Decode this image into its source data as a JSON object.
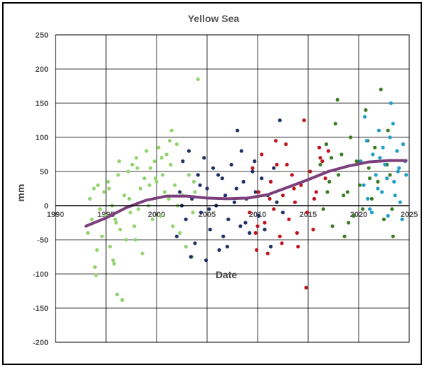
{
  "chart_data": {
    "type": "scatter",
    "title": "Yellow Sea",
    "xlabel": "Date",
    "ylabel": "mm",
    "xlim": [
      1990,
      2025
    ],
    "ylim": [
      -200,
      250
    ],
    "x_ticks": [
      1990,
      1995,
      2000,
      2005,
      2010,
      2015,
      2020,
      2025
    ],
    "y_ticks": [
      -200,
      -150,
      -100,
      -50,
      0,
      50,
      100,
      150,
      200,
      250
    ],
    "grid": true,
    "legend": "none",
    "trend": {
      "color": "#7B3F7B",
      "x": [
        1993.0,
        1995.0,
        1997.0,
        1999.0,
        2001.0,
        2003.0,
        2005.0,
        2007.0,
        2009.0,
        2011.0,
        2013.0,
        2015.0,
        2017.0,
        2019.0,
        2021.0,
        2023.0,
        2024.7
      ],
      "y": [
        -30,
        -18,
        -3,
        8,
        14,
        14,
        11,
        10,
        11,
        16,
        27,
        38,
        50,
        58,
        64,
        66,
        66
      ]
    },
    "series": [
      {
        "color": "#92D46E",
        "x": [
          1993.2,
          1993.4,
          1993.6,
          1993.8,
          1994.0,
          1994.2,
          1994.4,
          1994.6,
          1994.8,
          1995.0,
          1995.2,
          1995.4,
          1995.6,
          1995.8,
          1996.0,
          1996.2,
          1996.4,
          1996.6,
          1996.8,
          1997.0,
          1997.2,
          1997.4,
          1997.6,
          1997.8,
          1998.0,
          1998.2,
          1998.4,
          1998.6,
          1998.8,
          1999.0,
          1999.2,
          1999.4,
          1999.6,
          1999.8,
          2000.0,
          2000.2,
          2000.4,
          2000.6,
          2000.8,
          2001.0,
          2001.2,
          2001.4,
          2001.6,
          2001.8,
          2002.0,
          2002.3,
          2002.6,
          2002.9,
          2003.2,
          2003.5,
          2003.8,
          2004.1,
          1994.1,
          1995.3,
          1996.1,
          1997.3,
          1998.1,
          1999.3,
          2000.5,
          2001.5,
          1993.9,
          1995.9,
          1997.9,
          1999.9,
          2002.1,
          2003.6,
          1996.3,
          1995.7,
          2001.3,
          2003.7
        ],
        "y": [
          -40,
          10,
          -20,
          25,
          -102,
          30,
          -5,
          -45,
          20,
          -15,
          35,
          -60,
          0,
          -85,
          -25,
          45,
          -35,
          -138,
          15,
          -50,
          50,
          -10,
          60,
          -30,
          70,
          -5,
          25,
          -70,
          40,
          80,
          0,
          55,
          -20,
          65,
          35,
          85,
          -15,
          45,
          20,
          75,
          10,
          60,
          -30,
          30,
          90,
          -40,
          15,
          -60,
          45,
          -75,
          20,
          185,
          -65,
          25,
          -130,
          10,
          55,
          30,
          70,
          110,
          -90,
          -20,
          -50,
          40,
          0,
          -10,
          65,
          -80,
          95,
          35
        ]
      },
      {
        "color": "#1F3064",
        "x": [
          2002.0,
          2002.3,
          2002.6,
          2002.9,
          2003.2,
          2003.5,
          2003.8,
          2004.1,
          2004.4,
          2004.7,
          2005.0,
          2005.3,
          2005.6,
          2005.9,
          2006.2,
          2006.5,
          2006.8,
          2007.1,
          2007.4,
          2007.7,
          2008.0,
          2008.3,
          2008.6,
          2008.9,
          2009.2,
          2009.5,
          2009.8,
          2010.1,
          2002.5,
          2003.4,
          2004.3,
          2005.2,
          2006.1,
          2007.0,
          2007.9,
          2008.8,
          2009.7,
          2010.4,
          2010.7,
          2011.0,
          2011.3,
          2011.6,
          2011.9,
          2012.2,
          2012.5,
          2004.9,
          2006.6,
          2008.4
        ],
        "y": [
          -45,
          20,
          65,
          -20,
          80,
          10,
          -55,
          45,
          -10,
          70,
          25,
          -35,
          55,
          0,
          -65,
          40,
          15,
          -20,
          60,
          5,
          110,
          -30,
          35,
          10,
          -40,
          50,
          20,
          -15,
          0,
          -75,
          30,
          -5,
          45,
          -60,
          25,
          -25,
          65,
          40,
          -35,
          15,
          -60,
          55,
          5,
          125,
          -10,
          -80,
          -45,
          80
        ]
      },
      {
        "color": "#C0141C",
        "x": [
          2009.2,
          2009.5,
          2009.8,
          2010.1,
          2010.4,
          2010.7,
          2011.0,
          2011.3,
          2011.6,
          2011.9,
          2012.2,
          2012.5,
          2012.8,
          2013.1,
          2013.4,
          2013.7,
          2014.0,
          2014.3,
          2014.6,
          2014.9,
          2015.2,
          2015.5,
          2015.8,
          2016.1,
          2016.4,
          2016.7,
          2017.0,
          2010.0,
          2011.2,
          2012.4,
          2013.6,
          2014.8,
          2015.6,
          2016.2,
          2009.9,
          2011.8,
          2013.9,
          2012.9
        ],
        "y": [
          -10,
          55,
          -40,
          20,
          75,
          -25,
          -70,
          35,
          -5,
          60,
          -45,
          15,
          90,
          -20,
          45,
          5,
          -60,
          30,
          125,
          -10,
          50,
          -35,
          20,
          85,
          65,
          40,
          80,
          -30,
          10,
          -55,
          25,
          -120,
          10,
          70,
          -65,
          95,
          -40,
          60
        ]
      },
      {
        "color": "#3A7D22",
        "x": [
          2016.2,
          2016.5,
          2016.8,
          2017.1,
          2017.4,
          2017.7,
          2018.0,
          2018.3,
          2018.6,
          2018.9,
          2019.2,
          2019.5,
          2019.8,
          2020.1,
          2020.4,
          2020.7,
          2021.0,
          2021.3,
          2021.6,
          2021.9,
          2022.2,
          2022.5,
          2022.8,
          2023.1,
          2023.4,
          2017.9,
          2019.0,
          2021.1,
          2022.9,
          2023.3,
          2017.3,
          2018.5,
          2020.9,
          2016.9
        ],
        "y": [
          60,
          -5,
          90,
          35,
          -30,
          120,
          45,
          75,
          -45,
          20,
          100,
          -15,
          65,
          30,
          -5,
          140,
          55,
          10,
          85,
          35,
          170,
          -20,
          60,
          45,
          -45,
          155,
          -25,
          40,
          110,
          -5,
          70,
          15,
          95,
          20
        ]
      },
      {
        "color": "#1F9CC8",
        "x": [
          2020.2,
          2020.5,
          2020.8,
          2021.1,
          2021.4,
          2021.7,
          2022.0,
          2022.3,
          2022.6,
          2022.9,
          2023.2,
          2023.5,
          2023.8,
          2024.1,
          2024.4,
          2024.7,
          2020.6,
          2021.3,
          2022.1,
          2022.8,
          2023.1,
          2023.6,
          2024.0,
          2024.3,
          2021.9,
          2023.4,
          2024.6,
          2020.9,
          2022.4,
          2023.9
        ],
        "y": [
          65,
          30,
          95,
          -5,
          75,
          45,
          110,
          20,
          60,
          -15,
          150,
          35,
          80,
          5,
          90,
          45,
          130,
          -10,
          70,
          40,
          100,
          15,
          55,
          -20,
          25,
          120,
          65,
          10,
          85,
          50
        ]
      }
    ]
  }
}
